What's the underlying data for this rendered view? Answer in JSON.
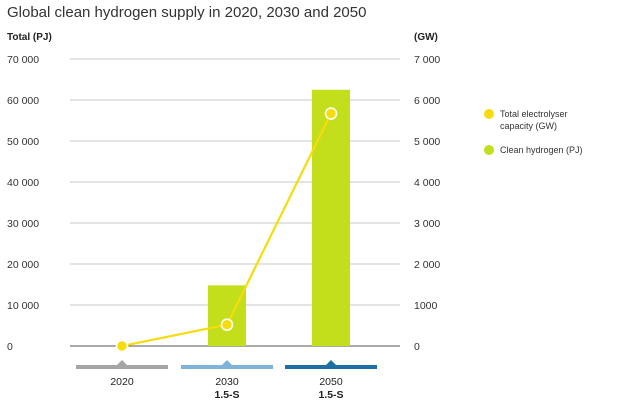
{
  "chart_data": {
    "type": "bar",
    "title": "Global clean hydrogen supply in 2020, 2030 and 2050",
    "y_left_label": "Total (PJ)",
    "y_right_label": "(GW)",
    "y_left_ticks": [
      "0",
      "10 000",
      "20 000",
      "30 000",
      "40 000",
      "50 000",
      "60 000",
      "70 000"
    ],
    "y_right_ticks": [
      "0",
      "1000",
      "2 000",
      "3 000",
      "4 000",
      "5 000",
      "6 000",
      "7 000"
    ],
    "ylim_left": [
      0,
      70000
    ],
    "ylim_right": [
      0,
      7000
    ],
    "categories": [
      {
        "label": "2020",
        "sublabel": "",
        "color": "#a6a6a6"
      },
      {
        "label": "2030",
        "sublabel": "1.5-S",
        "color": "#7fb3d9"
      },
      {
        "label": "2050",
        "sublabel": "1.5-S",
        "color": "#1b6fa3"
      }
    ],
    "series": [
      {
        "name": "Clean hydrogen (PJ)",
        "kind": "bar",
        "axis": "left",
        "color": "#c3df1c",
        "values": [
          0,
          14800,
          62500
        ]
      },
      {
        "name": "Total electrolyser capacity (GW)",
        "kind": "line",
        "axis": "right",
        "color": "#f5dc0a",
        "values": [
          0,
          520,
          5670
        ]
      }
    ],
    "legend_position": "right",
    "grid": true
  }
}
